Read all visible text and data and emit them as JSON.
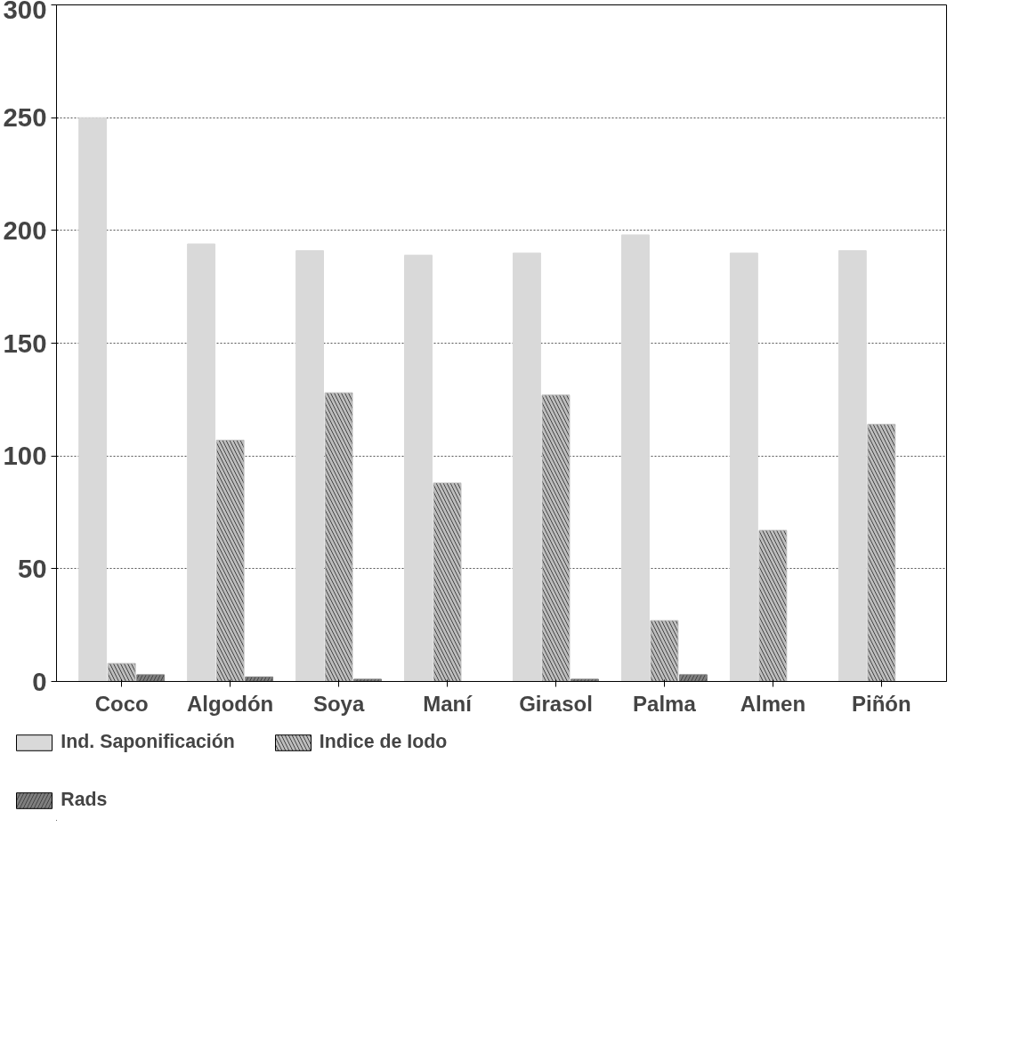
{
  "chart_data": {
    "type": "bar",
    "categories": [
      "Coco",
      "Algodón",
      "Soya",
      "Maní",
      "Girasol",
      "Palma",
      "Almen",
      "Piñón"
    ],
    "series": [
      {
        "name": "Ind. Saponificación",
        "color": "#d9d9d9",
        "values": [
          250,
          194,
          191,
          189,
          190,
          198,
          190,
          191
        ]
      },
      {
        "name": "Indice de Iodo",
        "color": "#bdbdbd",
        "values": [
          8,
          107,
          128,
          88,
          127,
          27,
          67,
          114
        ]
      },
      {
        "name": "Rads",
        "color": "#7f7f7f",
        "values": [
          3,
          2,
          1,
          0,
          1,
          3,
          0,
          0
        ]
      }
    ],
    "ylim": [
      0,
      300
    ],
    "yticks": [
      0,
      50,
      100,
      150,
      200,
      250,
      300
    ],
    "grid": "y",
    "legend": "bottom"
  }
}
